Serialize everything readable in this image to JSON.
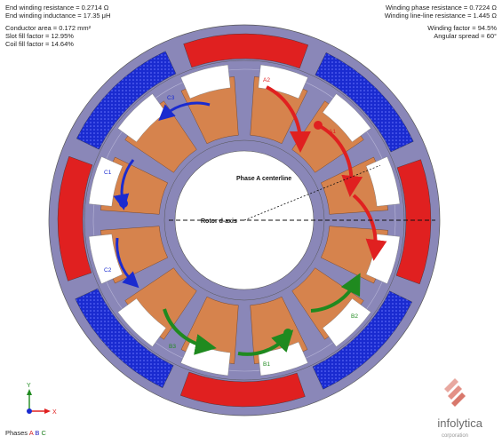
{
  "left_info": [
    "End winding resistance = 0.2714 Ω",
    "End winding inductance = 17.35 μH",
    "",
    "Conductor area = 0.172 mm²",
    "Slot fill factor = 12.95%",
    "Coil fill factor = 14.64%"
  ],
  "right_info": [
    "Winding phase resistance = 0.7224 Ω",
    "Winding line-line resistance = 1.445 Ω",
    "",
    "Winding factor = 94.5%",
    "Angular spread = 60°"
  ],
  "labels": {
    "phase_a_centerline": "Phase A centerline",
    "rotor_d_axis": "Rotor d-axis",
    "coil_a2": "A2",
    "coil_a1": "A1",
    "coil_b2": "B2",
    "coil_b1": "B1",
    "coil_c1": "C1",
    "coil_c2": "C2",
    "coil_c3": "C3",
    "coil_b3": "B3"
  },
  "triad": {
    "y": "Y",
    "x": "X"
  },
  "phases": {
    "label": "Phases",
    "a": "A",
    "b": "B",
    "c": "C"
  },
  "logo": {
    "name": "infolytica",
    "sub": "corporation"
  },
  "colors": {
    "phase_a": "#e02020",
    "phase_b": "#1a2bd0",
    "phase_c": "#1f8a1f",
    "housing": "#8a87b8",
    "tooth": "#d6834d"
  }
}
